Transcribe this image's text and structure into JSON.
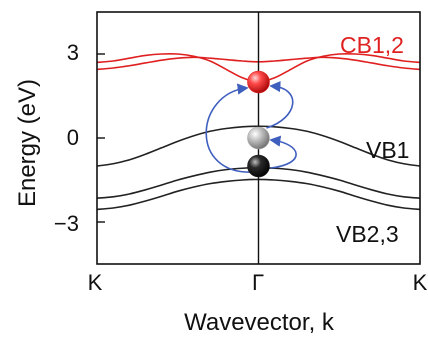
{
  "chart_data": {
    "type": "line",
    "xlabel": "Wavevector, k",
    "ylabel": "Energy (eV)",
    "xticks": [
      "K",
      "Γ",
      "K"
    ],
    "xrange": [
      -1,
      1
    ],
    "yticks": [
      3,
      0,
      -3
    ],
    "ytick_labels": [
      "3",
      "0",
      "−3"
    ],
    "ylim": [
      -4.5,
      4.5
    ],
    "grid": false,
    "band_labels": {
      "cb": "CB1,2",
      "vb1": "VB1",
      "vb23": "VB2,3"
    },
    "series": [
      {
        "id": "cb1",
        "group": "cb",
        "x": [
          -1,
          -0.9,
          -0.8,
          -0.7,
          -0.6,
          -0.5,
          -0.4,
          -0.3,
          -0.2,
          -0.1,
          0,
          0.1,
          0.2,
          0.3,
          0.4,
          0.5,
          0.6,
          0.7,
          0.8,
          0.9,
          1
        ],
        "values": [
          2.7,
          2.75,
          2.85,
          2.95,
          3.0,
          3.0,
          2.92,
          2.75,
          2.45,
          2.15,
          2.0,
          2.15,
          2.45,
          2.75,
          2.92,
          3.0,
          3.0,
          2.95,
          2.85,
          2.75,
          2.7
        ]
      },
      {
        "id": "cb2",
        "group": "cb",
        "x": [
          -1,
          -0.9,
          -0.8,
          -0.7,
          -0.6,
          -0.5,
          -0.4,
          -0.3,
          -0.2,
          -0.1,
          0,
          0.1,
          0.2,
          0.3,
          0.4,
          0.5,
          0.6,
          0.7,
          0.8,
          0.9,
          1
        ],
        "values": [
          2.45,
          2.5,
          2.58,
          2.68,
          2.78,
          2.85,
          2.88,
          2.85,
          2.8,
          2.75,
          2.72,
          2.75,
          2.8,
          2.85,
          2.88,
          2.85,
          2.78,
          2.68,
          2.58,
          2.5,
          2.45
        ]
      },
      {
        "id": "vb1",
        "group": "vb",
        "x": [
          -1,
          -0.9,
          -0.8,
          -0.7,
          -0.6,
          -0.5,
          -0.4,
          -0.3,
          -0.2,
          -0.1,
          0,
          0.1,
          0.2,
          0.3,
          0.4,
          0.5,
          0.6,
          0.7,
          0.8,
          0.9,
          1
        ],
        "values": [
          -1.0,
          -0.92,
          -0.78,
          -0.58,
          -0.35,
          -0.12,
          0.08,
          0.24,
          0.34,
          0.4,
          0.42,
          0.4,
          0.34,
          0.24,
          0.08,
          -0.12,
          -0.35,
          -0.58,
          -0.78,
          -0.92,
          -1.0
        ]
      },
      {
        "id": "vb2",
        "group": "vb",
        "x": [
          -1,
          -0.9,
          -0.8,
          -0.7,
          -0.6,
          -0.5,
          -0.4,
          -0.3,
          -0.2,
          -0.1,
          0,
          0.1,
          0.2,
          0.3,
          0.4,
          0.5,
          0.6,
          0.7,
          0.8,
          0.9,
          1
        ],
        "values": [
          -2.15,
          -2.1,
          -2.0,
          -1.85,
          -1.68,
          -1.5,
          -1.35,
          -1.22,
          -1.13,
          -1.08,
          -1.06,
          -1.08,
          -1.13,
          -1.22,
          -1.35,
          -1.5,
          -1.68,
          -1.85,
          -2.0,
          -2.1,
          -2.15
        ]
      },
      {
        "id": "vb3",
        "group": "vb",
        "x": [
          -1,
          -0.9,
          -0.8,
          -0.7,
          -0.6,
          -0.5,
          -0.4,
          -0.3,
          -0.2,
          -0.1,
          0,
          0.1,
          0.2,
          0.3,
          0.4,
          0.5,
          0.6,
          0.7,
          0.8,
          0.9,
          1
        ],
        "values": [
          -2.55,
          -2.5,
          -2.4,
          -2.25,
          -2.08,
          -1.9,
          -1.75,
          -1.63,
          -1.55,
          -1.5,
          -1.48,
          -1.5,
          -1.55,
          -1.63,
          -1.75,
          -1.9,
          -2.08,
          -2.25,
          -2.4,
          -2.5,
          -2.55
        ]
      }
    ],
    "markers": [
      {
        "id": "electron-cb",
        "x": 0,
        "y": 2.0,
        "color": "#e02020"
      },
      {
        "id": "state-mid",
        "x": 0,
        "y": 0.0,
        "color": "#a8a8a8"
      },
      {
        "id": "hole-vb",
        "x": 0,
        "y": -1.0,
        "color": "#1a1a1a"
      }
    ],
    "colors": {
      "cb": "#e02020",
      "vb": "#222222",
      "arrow": "#3f5fbf",
      "axis": "#111111"
    }
  }
}
